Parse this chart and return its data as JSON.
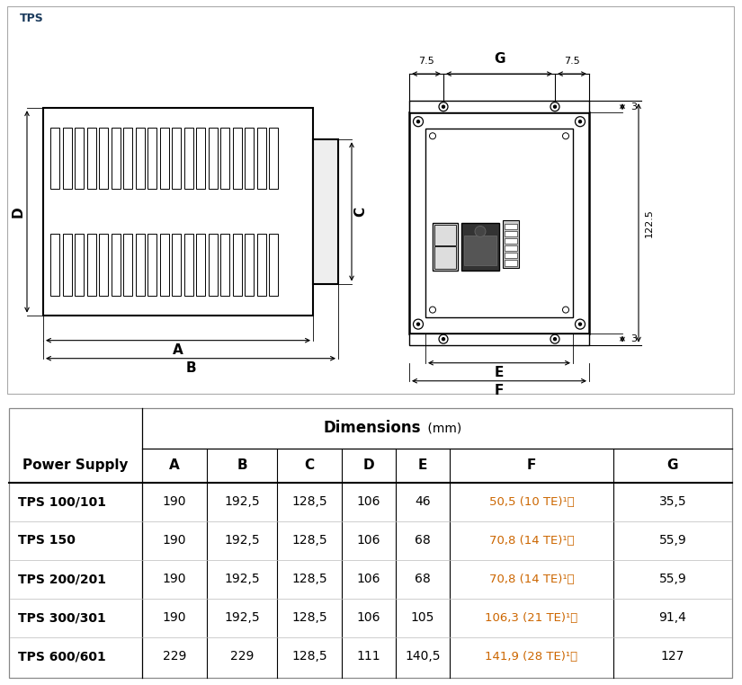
{
  "title": "TPS",
  "table_header_bold": "Dimensions",
  "table_header_unit": " (mm)",
  "col_headers": [
    "Power Supply",
    "A",
    "B",
    "C",
    "D",
    "E",
    "F",
    "G"
  ],
  "rows": [
    [
      "TPS 100/101",
      "190",
      "192,5",
      "128,5",
      "106",
      "46",
      "50,5 (10 TE)¹⧧",
      "35,5"
    ],
    [
      "TPS 150",
      "190",
      "192,5",
      "128,5",
      "106",
      "68",
      "70,8 (14 TE)¹⧧",
      "55,9"
    ],
    [
      "TPS 200/201",
      "190",
      "192,5",
      "128,5",
      "106",
      "68",
      "70,8 (14 TE)¹⧧",
      "55,9"
    ],
    [
      "TPS 300/301",
      "190",
      "192,5",
      "128,5",
      "106",
      "105",
      "106,3 (21 TE)¹⧧",
      "91,4"
    ],
    [
      "TPS 600/601",
      "229",
      "229",
      "128,5",
      "111",
      "140,5",
      "141,9 (28 TE)¹⧧",
      "127"
    ]
  ],
  "f_col_values": [
    "50,5 (10 TE)¹)",
    "70,8 (14 TE)¹)",
    "70,8 (14 TE)¹)",
    "106,3 (21 TE)¹)",
    "141,9 (28 TE)¹)"
  ],
  "line_color": "#000000",
  "orange_color": "#cc6600",
  "bg_color": "#ffffff",
  "tps_label_color": "#1a3a5c"
}
